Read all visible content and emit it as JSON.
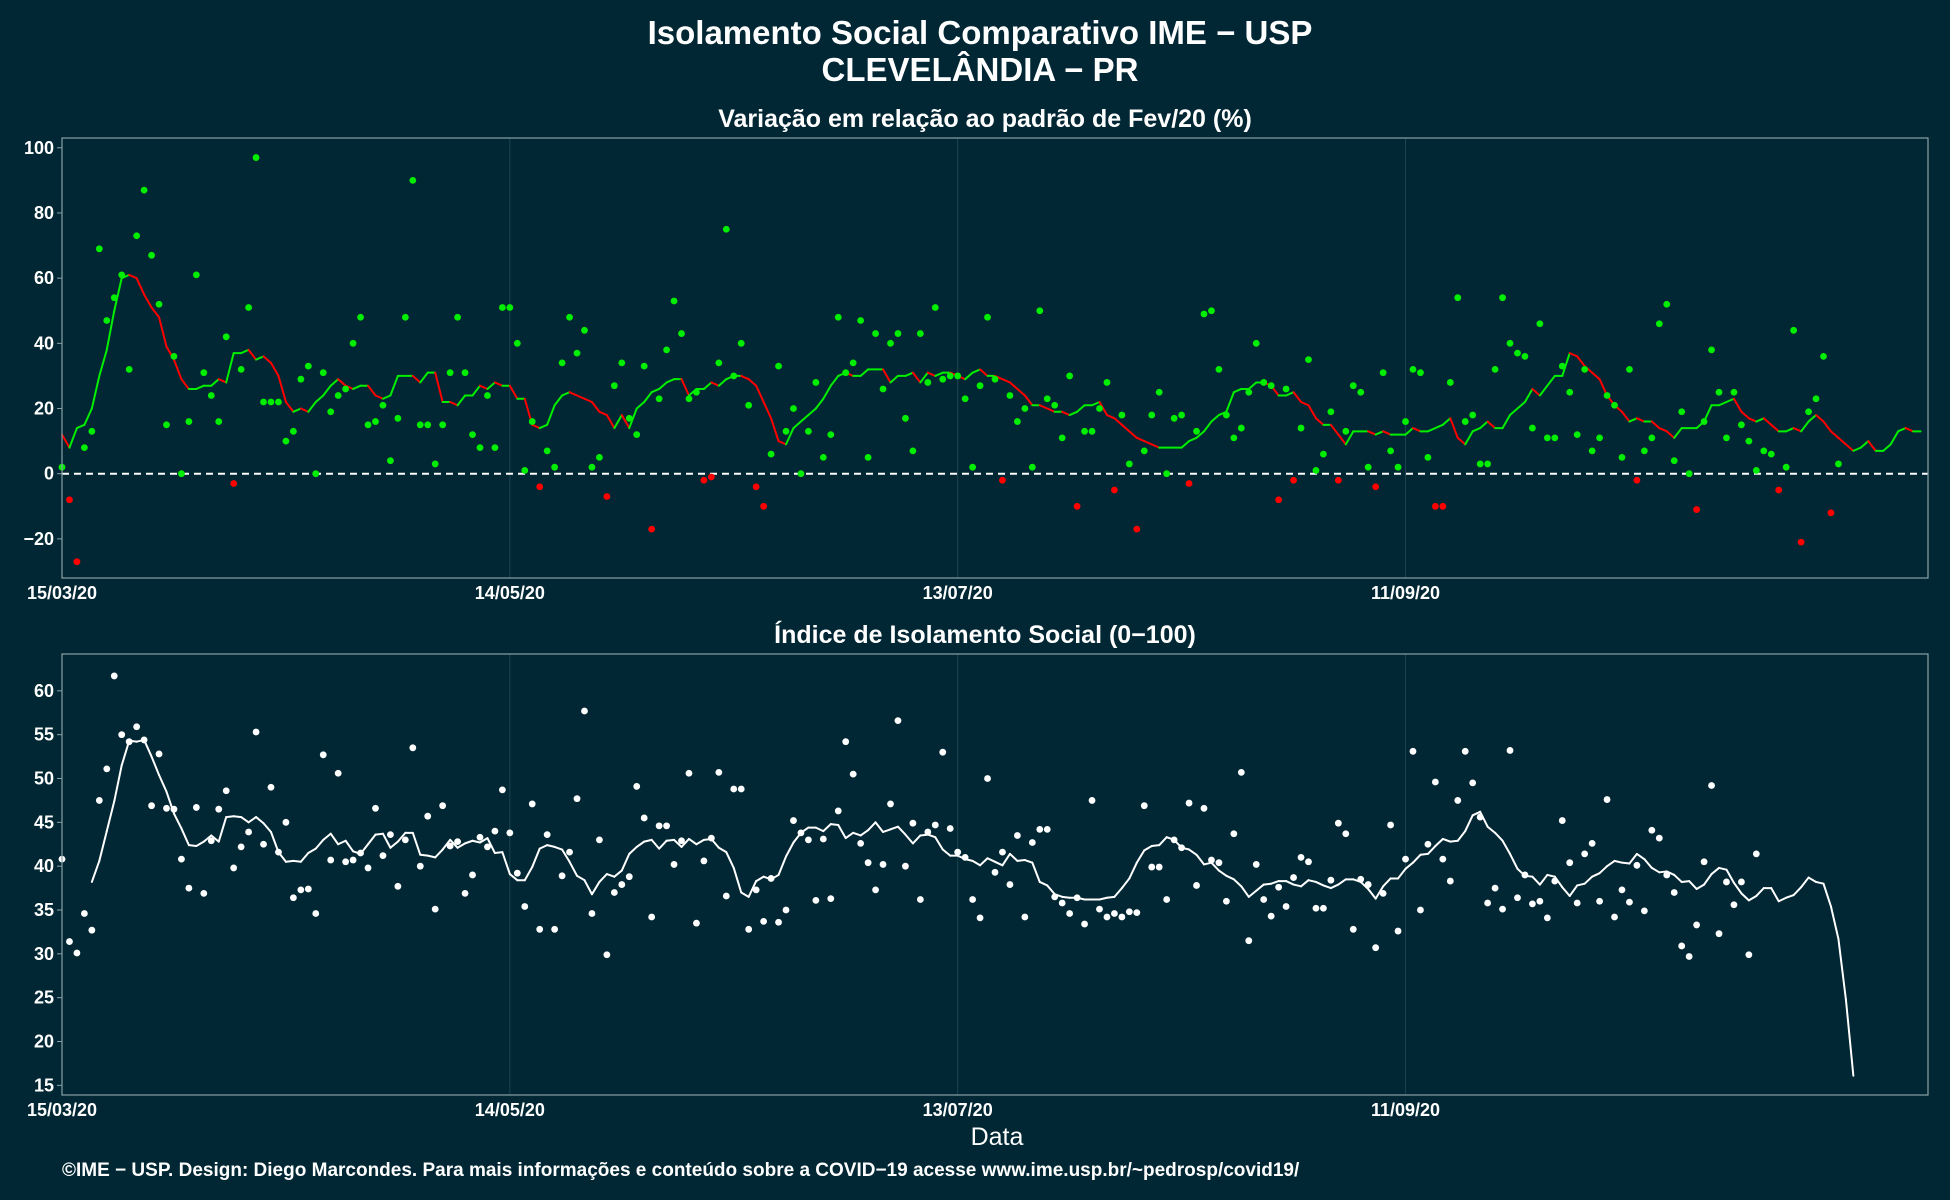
{
  "title_line1": "Isolamento Social Comparativo IME − USP",
  "title_line2": "CLEVELÂNDIA − PR",
  "footer": "©IME − USP. Design: Diego Marcondes. Para mais informações e conteúdo sobre a COVID−19 acesse www.ime.usp.br/~pedrosp/covid19/",
  "colors": {
    "background": "#002733",
    "positive": "#00ee00",
    "negative": "#ff0000",
    "index": "#ffffff",
    "grid": "#1c4350",
    "frame": "#8aa0a6"
  },
  "chart_data": [
    {
      "type": "scatter",
      "subtitle": "Variação em relação ao padrão de Fev/20 (%)",
      "xlabel": "",
      "ylabel": "",
      "x_range": [
        "2020-03-15",
        "2020-11-20"
      ],
      "ylim": [
        -32,
        103
      ],
      "yticks": [
        -20,
        0,
        20,
        40,
        60,
        80,
        100
      ],
      "xticks": [
        {
          "date": "2020-03-15",
          "label": "15/03/20"
        },
        {
          "date": "2020-05-14",
          "label": "14/05/20"
        },
        {
          "date": "2020-07-13",
          "label": "13/07/20"
        },
        {
          "date": "2020-09-11",
          "label": "11/09/20"
        }
      ],
      "reference_line": 0,
      "grid": true,
      "points_color_rule": "green when value >= 0, red when value < 0",
      "line_color_rule": "green while rising, red while falling",
      "series": [
        {
          "kind": "points",
          "start_date": "2020-03-15",
          "values": [
            2,
            -8,
            -27,
            8,
            13,
            69,
            47,
            54,
            61,
            32,
            73,
            87,
            67,
            52,
            15,
            36,
            0,
            16,
            61,
            31,
            24,
            16,
            42,
            -3,
            32,
            51,
            97,
            22,
            22,
            22,
            10,
            13,
            29,
            33,
            0,
            31,
            19,
            24,
            26,
            40,
            48,
            15,
            16,
            21,
            4,
            17,
            48,
            90,
            15,
            15,
            3,
            15,
            31,
            48,
            31,
            12,
            8,
            24,
            8,
            51,
            51,
            40,
            1,
            16,
            -4,
            7,
            2,
            34,
            48,
            37,
            44,
            2,
            5,
            -7,
            27,
            34,
            17,
            12,
            33,
            -17,
            23,
            38,
            53,
            43,
            23,
            25,
            -2,
            -1,
            34,
            75,
            30,
            40,
            21,
            -4,
            -10,
            6,
            33,
            13,
            20,
            0,
            13,
            28,
            5,
            12,
            48,
            31,
            34,
            47,
            5,
            43,
            26,
            40,
            43,
            17,
            7,
            43,
            28,
            51,
            29,
            30,
            30,
            23,
            2,
            27,
            48,
            29,
            -2,
            24,
            16,
            20,
            2,
            50,
            23,
            21,
            11,
            30,
            -10,
            13,
            13,
            20,
            28,
            -5,
            18,
            3,
            -17,
            7,
            18,
            25,
            0,
            17,
            18,
            -3,
            13,
            49,
            50,
            32,
            18,
            11,
            14,
            25,
            40,
            28,
            27,
            -8,
            26,
            -2,
            14,
            35,
            1,
            6,
            19,
            -2,
            13,
            27,
            25,
            2,
            -4,
            31,
            7,
            2,
            16,
            32,
            31,
            5,
            -10,
            -10,
            28,
            54,
            16,
            18,
            3,
            3,
            32,
            54,
            40,
            37,
            36,
            14,
            46,
            11,
            11,
            33,
            25,
            12,
            32,
            7,
            11,
            24,
            21,
            5,
            32,
            -2,
            7,
            11,
            46,
            52,
            4,
            19,
            0,
            -11,
            16,
            38,
            25,
            11,
            25,
            15,
            10,
            1,
            7,
            6,
            -5,
            2,
            44,
            -21,
            19,
            23,
            36,
            -12,
            3
          ]
        },
        {
          "kind": "moving_average",
          "start_date": "2020-03-15",
          "values": [
            12,
            8,
            14,
            15,
            20,
            30,
            38,
            50,
            60,
            61,
            60,
            55,
            51,
            48,
            39,
            35,
            29,
            26,
            26,
            27,
            27,
            29,
            28,
            37,
            37,
            38,
            35,
            36,
            34,
            30,
            22,
            19,
            20,
            19,
            22,
            24,
            27,
            29,
            27,
            26,
            27,
            27,
            24,
            23,
            24,
            30,
            30,
            30,
            28,
            31,
            31,
            22,
            22,
            21,
            24,
            24,
            27,
            26,
            28,
            27,
            27,
            23,
            23,
            15,
            14,
            15,
            21,
            24,
            25,
            24,
            23,
            22,
            19,
            18,
            14,
            18,
            14,
            20,
            22,
            25,
            26,
            28,
            29,
            29,
            24,
            26,
            26,
            28,
            27,
            29,
            30,
            30,
            29,
            27,
            22,
            17,
            10,
            9,
            14,
            16,
            18,
            20,
            23,
            27,
            30,
            31,
            30,
            30,
            32,
            32,
            32,
            28,
            30,
            30,
            31,
            28,
            31,
            30,
            31,
            31,
            30,
            29,
            31,
            32,
            30,
            30,
            29,
            28,
            26,
            24,
            21,
            21,
            20,
            19,
            19,
            18,
            19,
            21,
            21,
            22,
            18,
            17,
            15,
            13,
            11,
            10,
            9,
            8,
            8,
            8,
            8,
            10,
            11,
            13,
            16,
            18,
            19,
            25,
            26,
            26,
            28,
            28,
            27,
            24,
            24,
            25,
            22,
            21,
            17,
            15,
            15,
            12,
            9,
            13,
            13,
            13,
            12,
            13,
            12,
            12,
            12,
            14,
            13,
            13,
            14,
            15,
            17,
            11,
            9,
            13,
            14,
            16,
            14,
            14,
            18,
            20,
            22,
            26,
            24,
            27,
            30,
            30,
            37,
            36,
            33,
            31,
            29,
            24,
            21,
            19,
            16,
            17,
            16,
            16,
            14,
            13,
            11,
            14,
            14,
            14,
            16,
            21,
            21,
            22,
            23,
            19,
            17,
            16,
            17,
            15,
            13,
            13,
            14,
            13,
            16,
            18,
            16,
            13,
            11,
            9,
            7,
            8,
            10,
            7,
            7,
            9,
            13,
            14,
            13,
            13
          ]
        }
      ]
    },
    {
      "type": "scatter",
      "subtitle": "Índice de Isolamento Social (0−100)",
      "xlabel": "Data",
      "ylabel": "",
      "x_range": [
        "2020-03-15",
        "2020-11-20"
      ],
      "ylim": [
        13.9,
        64.2
      ],
      "yticks": [
        15,
        20,
        25,
        30,
        35,
        40,
        45,
        50,
        55,
        60
      ],
      "xticks": [
        {
          "date": "2020-03-15",
          "label": "15/03/20"
        },
        {
          "date": "2020-05-14",
          "label": "14/05/20"
        },
        {
          "date": "2020-07-13",
          "label": "13/07/20"
        },
        {
          "date": "2020-09-11",
          "label": "11/09/20"
        }
      ],
      "grid": true,
      "series": [
        {
          "kind": "points",
          "start_date": "2020-03-15",
          "values": [
            40.8,
            31.4,
            30.1,
            34.6,
            32.7,
            47.5,
            51.1,
            61.7,
            55.0,
            54.2,
            55.9,
            54.4,
            46.9,
            52.8,
            46.6,
            46.5,
            40.8,
            37.5,
            46.7,
            36.9,
            42.9,
            46.5,
            48.6,
            39.8,
            42.2,
            43.9,
            55.3,
            42.5,
            49.0,
            41.6,
            45.0,
            36.4,
            37.3,
            37.4,
            34.6,
            52.7,
            40.7,
            50.6,
            40.5,
            40.7,
            41.5,
            39.8,
            46.6,
            41.2,
            43.6,
            37.7,
            43.0,
            53.5,
            40.0,
            45.7,
            35.1,
            46.9,
            42.3,
            42.8,
            36.9,
            39.0,
            43.3,
            42.2,
            44.0,
            48.7,
            43.8,
            39.2,
            35.4,
            47.1,
            32.8,
            43.6,
            32.8,
            38.9,
            41.6,
            47.7,
            57.7,
            34.6,
            43.0,
            29.9,
            37.0,
            37.9,
            38.8,
            49.1,
            45.5,
            34.2,
            44.6,
            44.6,
            40.2,
            42.9,
            50.6,
            33.5,
            40.6,
            43.2,
            50.7,
            36.6,
            48.8,
            48.8,
            32.8,
            37.3,
            33.7,
            38.6,
            33.6,
            35.0,
            45.2,
            43.8,
            43.0,
            36.1,
            43.1,
            36.3,
            46.3,
            54.2,
            50.5,
            42.6,
            40.4,
            37.3,
            40.2,
            47.1,
            56.6,
            40.0,
            44.9,
            36.2,
            43.9,
            44.7,
            53.0,
            44.3,
            41.6,
            41.0,
            36.2,
            34.1,
            50.0,
            39.3,
            41.6,
            37.9,
            43.5,
            34.2,
            42.7,
            44.2,
            44.2,
            36.5,
            35.8,
            34.6,
            36.4,
            33.4,
            47.5,
            35.1,
            34.2,
            34.6,
            34.2,
            34.8,
            34.7,
            46.9,
            39.9,
            39.9,
            36.2,
            43.0,
            42.1,
            47.2,
            37.8,
            46.6,
            40.7,
            40.4,
            36.0,
            43.7,
            50.7,
            31.5,
            40.2,
            36.2,
            34.3,
            37.6,
            35.4,
            38.7,
            41.0,
            40.5,
            35.2,
            35.2,
            38.4,
            44.9,
            43.7,
            32.8,
            38.5,
            37.9,
            30.7,
            36.9,
            44.7,
            32.6,
            40.8,
            53.1,
            35.0,
            42.5,
            49.6,
            40.8,
            38.3,
            47.5,
            53.1,
            49.5,
            45.6,
            35.8,
            37.5,
            35.1,
            53.2,
            36.4,
            39.0,
            35.7,
            36.0,
            34.1,
            38.3,
            45.2,
            40.4,
            35.8,
            41.4,
            42.6,
            36.0,
            47.6,
            34.2,
            37.3,
            35.9,
            40.1,
            34.9,
            44.1,
            43.2,
            39.0,
            37.0,
            30.9,
            29.7,
            33.3,
            40.5,
            49.2,
            32.3,
            38.2,
            35.6,
            38.2,
            29.9,
            41.4
          ]
        },
        {
          "kind": "moving_average",
          "start_date": "2020-03-19",
          "values": [
            38.2,
            40.6,
            44.0,
            47.4,
            51.5,
            54.3,
            54.2,
            54.4,
            52.5,
            50.4,
            48.5,
            46.0,
            44.3,
            42.4,
            42.3,
            42.8,
            43.5,
            42.8,
            45.6,
            45.7,
            45.6,
            45.0,
            45.6,
            44.9,
            43.9,
            41.6,
            40.5,
            40.6,
            40.5,
            41.5,
            42.0,
            43.0,
            43.7,
            42.5,
            42.9,
            41.7,
            41.4,
            42.5,
            43.6,
            43.7,
            42.1,
            42.8,
            43.8,
            43.8,
            41.3,
            41.2,
            41.0,
            41.9,
            43.0,
            42.1,
            42.6,
            42.9,
            42.7,
            43.2,
            41.5,
            41.6,
            39.1,
            38.4,
            38.4,
            39.9,
            42.0,
            42.4,
            42.2,
            41.9,
            40.5,
            38.9,
            38.4,
            36.8,
            38.2,
            39.1,
            38.8,
            39.5,
            41.4,
            42.2,
            42.8,
            43.0,
            42.0,
            42.9,
            43.0,
            42.2,
            43.1,
            42.5,
            43.0,
            43.1,
            42.1,
            41.6,
            39.8,
            37.0,
            36.5,
            38.3,
            38.8,
            38.5,
            39.0,
            41.1,
            42.7,
            43.8,
            44.4,
            44.4,
            44.0,
            44.8,
            44.7,
            43.2,
            43.8,
            43.5,
            44.1,
            45.0,
            43.9,
            44.2,
            44.5,
            43.6,
            42.6,
            43.5,
            43.6,
            43.3,
            41.9,
            41.2,
            41.2,
            40.8,
            40.6,
            40.1,
            40.9,
            40.5,
            40.1,
            41.4,
            40.6,
            40.7,
            40.4,
            38.2,
            37.8,
            36.8,
            36.5,
            36.4,
            36.4,
            36.2,
            36.2,
            36.2,
            36.4,
            36.5,
            37.5,
            38.6,
            40.4,
            41.8,
            42.3,
            42.4,
            43.3,
            43.0,
            42.1,
            41.9,
            41.3,
            40.2,
            40.4,
            39.5,
            38.9,
            38.5,
            37.7,
            36.5,
            37.2,
            37.9,
            38.0,
            38.3,
            38.3,
            37.9,
            37.7,
            38.4,
            38.2,
            37.8,
            37.5,
            37.9,
            38.5,
            38.5,
            38.2,
            37.4,
            36.3,
            37.7,
            38.6,
            38.6,
            39.7,
            40.4,
            41.3,
            41.4,
            42.3,
            43.1,
            42.8,
            42.9,
            44.0,
            45.8,
            46.2,
            44.5,
            43.8,
            42.9,
            41.4,
            39.7,
            38.9,
            38.8,
            37.9,
            39.0,
            38.8,
            37.6,
            36.6,
            37.8,
            38.0,
            38.8,
            39.2,
            40.0,
            40.6,
            40.4,
            40.3,
            41.4,
            40.8,
            39.8,
            39.3,
            39.4,
            39.0,
            38.2,
            38.3,
            37.4,
            37.9,
            39.1,
            39.8,
            39.6,
            38.1,
            36.9,
            36.1,
            36.6,
            37.5,
            37.5,
            36.0,
            36.4,
            36.7,
            37.6,
            38.7,
            38.2,
            38.0,
            35.4,
            31.7,
            24.8,
            16.1
          ]
        }
      ]
    }
  ]
}
